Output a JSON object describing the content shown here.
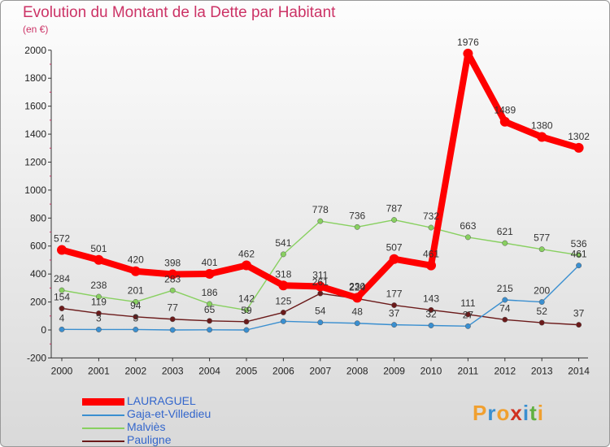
{
  "header": {
    "title": "Evolution du Montant de la Dette par Habitant",
    "unit": "(en €)"
  },
  "logo": {
    "letters": [
      "P",
      "r",
      "o",
      "x",
      "i",
      "t",
      "i"
    ],
    "colors": [
      "#f0a030",
      "#3a8fd0",
      "#f0a030",
      "#d03020",
      "#3a8fd0",
      "#60b040",
      "#f0a030"
    ]
  },
  "chart_data": {
    "type": "line",
    "title": "Evolution du Montant de la Dette par Habitant",
    "ylabel": "(en €)",
    "xlabel": "",
    "ylim": [
      -200,
      2000
    ],
    "yticks": [
      -200,
      0,
      200,
      400,
      600,
      800,
      1000,
      1200,
      1400,
      1600,
      1800,
      2000
    ],
    "x": [
      "2000",
      "2001",
      "2002",
      "2003",
      "2004",
      "2005",
      "2006",
      "2007",
      "2008",
      "2009",
      "2010",
      "2011",
      "2012",
      "2013",
      "2014"
    ],
    "grid": false,
    "legend_position": "bottom-left",
    "series": [
      {
        "name": "Pauligne",
        "color": "#6b1a1a",
        "values": [
          154,
          119,
          94,
          77,
          65,
          59,
          125,
          261,
          224,
          177,
          143,
          111,
          74,
          52,
          37
        ]
      },
      {
        "name": "Gaja-et-Villedieu",
        "color": "#3a8fd0",
        "values": [
          4,
          3,
          3,
          0,
          1,
          0,
          62,
          54,
          48,
          37,
          32,
          27,
          215,
          200,
          461
        ]
      },
      {
        "name": "Malviès",
        "color": "#88d060",
        "values": [
          284,
          238,
          201,
          283,
          186,
          142,
          541,
          778,
          736,
          787,
          732,
          663,
          621,
          577,
          536
        ]
      },
      {
        "name": "LAURAGUEL",
        "color": "#ff0000",
        "values": [
          572,
          501,
          420,
          398,
          401,
          462,
          318,
          311,
          230,
          507,
          461,
          1976,
          1489,
          1380,
          1302
        ]
      }
    ],
    "data_labels": [
      {
        "series": "Pauligne",
        "labels": [
          "154",
          "119",
          "94",
          "77",
          "65",
          "59",
          "125",
          "261",
          "224",
          "177",
          "143",
          "111",
          "74",
          "52",
          "37"
        ]
      },
      {
        "series": "Gaja-et-Villedieu",
        "labels": [
          "4",
          "3",
          "3",
          "",
          "",
          "",
          "",
          "54",
          "48",
          "37",
          "32",
          "27",
          "215",
          "200",
          "461"
        ]
      },
      {
        "series": "Malviès",
        "labels": [
          "284",
          "238",
          "201",
          "283",
          "186",
          "142",
          "541",
          "778",
          "736",
          "787",
          "732",
          "663",
          "621",
          "577",
          "536"
        ]
      },
      {
        "series": "LAURAGUEL",
        "labels": [
          "572",
          "501",
          "420",
          "398",
          "401",
          "462",
          "318",
          "311",
          "230",
          "507",
          "461",
          "1976",
          "1489",
          "1380",
          "1302"
        ]
      }
    ]
  },
  "legend": [
    {
      "label": "LAURAGUEL",
      "color": "#ff0000",
      "thick": true
    },
    {
      "label": "Gaja-et-Villedieu",
      "color": "#3a8fd0",
      "thick": false
    },
    {
      "label": "Malviès",
      "color": "#88d060",
      "thick": false
    },
    {
      "label": "Pauligne",
      "color": "#6b1a1a",
      "thick": false
    }
  ]
}
